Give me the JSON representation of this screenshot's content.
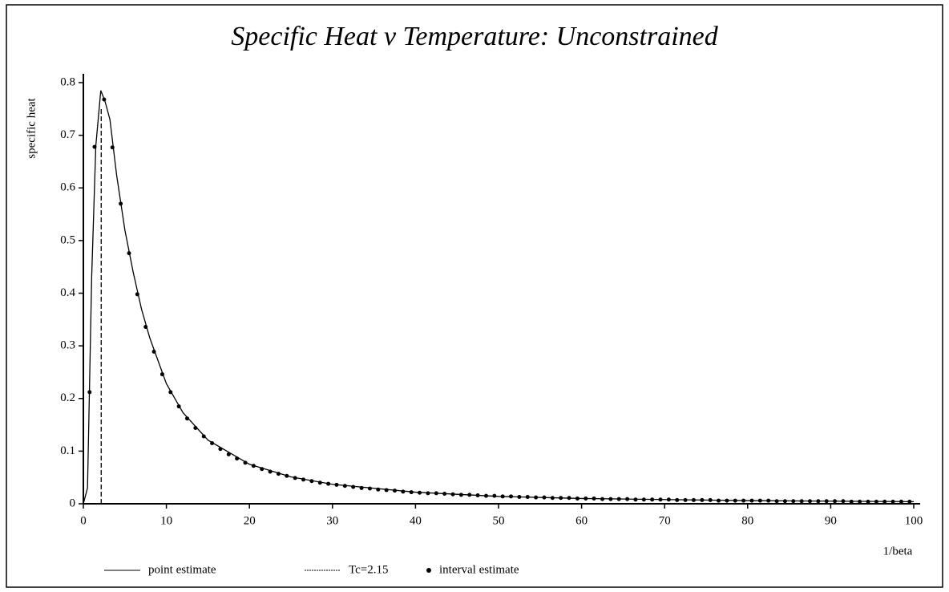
{
  "chart_data": {
    "type": "line",
    "title": "Specific Heat v Temperature: Unconstrained",
    "xlabel": "1/beta",
    "ylabel": "specific heat",
    "xlim": [
      0,
      100
    ],
    "ylim": [
      0,
      0.8
    ],
    "xticks": [
      0,
      10,
      20,
      30,
      40,
      50,
      60,
      70,
      80,
      90,
      100
    ],
    "yticks": [
      0,
      0.1,
      0.2,
      0.3,
      0.4,
      0.5,
      0.6,
      0.7,
      0.8
    ],
    "series": [
      {
        "name": "point estimate",
        "color": "#000000",
        "linestyle": "solid",
        "marker": "none",
        "x": [
          0,
          0.5,
          1,
          1.5,
          2.1,
          2.6,
          3.2,
          4,
          5,
          6,
          7,
          8,
          10,
          12,
          15,
          20,
          25,
          30,
          40,
          50,
          60,
          70,
          80,
          90,
          100
        ],
        "values": [
          0,
          0.03,
          0.43,
          0.68,
          0.785,
          0.765,
          0.73,
          0.625,
          0.52,
          0.44,
          0.37,
          0.315,
          0.228,
          0.173,
          0.121,
          0.075,
          0.051,
          0.037,
          0.022,
          0.014,
          0.01,
          0.008,
          0.006,
          0.005,
          0.004
        ]
      },
      {
        "name": "Tc=2.15",
        "color": "#000000",
        "linestyle": "dashed",
        "marker": "none",
        "x": [
          2.15,
          2.15
        ],
        "values": [
          0,
          0.75
        ]
      },
      {
        "name": "interval estimate",
        "color": "#000000",
        "linestyle": "none",
        "marker": "dot",
        "x": [
          0.75,
          1.35,
          2.5,
          3.5,
          4.5,
          5.5,
          6.5,
          7.5,
          8.5,
          9.5,
          10.5,
          11.5,
          12.5,
          13.5,
          14.5,
          15.5,
          16.5,
          17.5,
          18.5,
          19.5,
          20.5,
          21.5,
          22.5,
          23.5,
          24.5,
          25.5,
          26.5,
          27.5,
          28.5,
          29.5,
          30.5,
          31.5,
          32.5,
          33.5,
          34.5,
          35.5,
          36.5,
          37.5,
          38.5,
          39.5,
          40.5,
          41.5,
          42.5,
          43.5,
          44.5,
          45.5,
          46.5,
          47.5,
          48.5,
          49.5,
          50.5,
          51.5,
          52.5,
          53.5,
          54.5,
          55.5,
          56.5,
          57.5,
          58.5,
          59.5,
          60.5,
          61.5,
          62.5,
          63.5,
          64.5,
          65.5,
          66.5,
          67.5,
          68.5,
          69.5,
          70.5,
          71.5,
          72.5,
          73.5,
          74.5,
          75.5,
          76.5,
          77.5,
          78.5,
          79.5,
          80.5,
          81.5,
          82.5,
          83.5,
          84.5,
          85.5,
          86.5,
          87.5,
          88.5,
          89.5,
          90.5,
          91.5,
          92.5,
          93.5,
          94.5,
          95.5,
          96.5,
          97.5,
          98.5,
          99.5
        ],
        "values": [
          0.212,
          0.678,
          0.768,
          0.677,
          0.57,
          0.476,
          0.398,
          0.336,
          0.289,
          0.246,
          0.212,
          0.185,
          0.162,
          0.144,
          0.128,
          0.115,
          0.104,
          0.094,
          0.086,
          0.078,
          0.072,
          0.066,
          0.061,
          0.057,
          0.053,
          0.049,
          0.046,
          0.043,
          0.04,
          0.038,
          0.036,
          0.034,
          0.032,
          0.03,
          0.029,
          0.027,
          0.026,
          0.025,
          0.023,
          0.022,
          0.021,
          0.02,
          0.02,
          0.019,
          0.018,
          0.017,
          0.017,
          0.016,
          0.015,
          0.015,
          0.014,
          0.014,
          0.013,
          0.013,
          0.012,
          0.012,
          0.011,
          0.011,
          0.011,
          0.01,
          0.01,
          0.01,
          0.009,
          0.009,
          0.009,
          0.009,
          0.008,
          0.008,
          0.008,
          0.008,
          0.008,
          0.007,
          0.007,
          0.007,
          0.007,
          0.007,
          0.006,
          0.006,
          0.006,
          0.006,
          0.006,
          0.006,
          0.006,
          0.005,
          0.005,
          0.005,
          0.005,
          0.005,
          0.005,
          0.005,
          0.005,
          0.005,
          0.004,
          0.004,
          0.004,
          0.004,
          0.004,
          0.004,
          0.004,
          0.004
        ]
      }
    ]
  }
}
